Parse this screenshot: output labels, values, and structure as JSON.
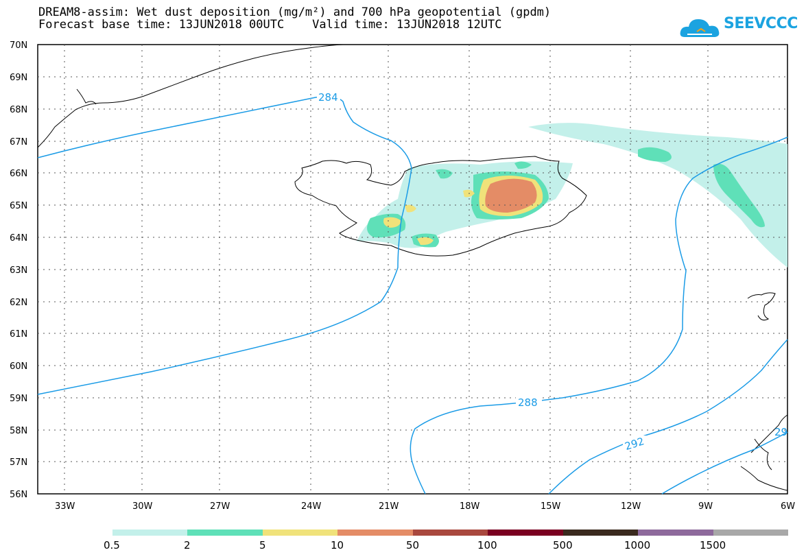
{
  "header": {
    "title_line1": "DREAM8-assim: Wet dust deposition (mg/m²) and 700 hPa geopotential (gpdm)",
    "title_line2": "Forecast base time: 13JUN2018 00UTC    Valid time: 13JUN2018 12UTC",
    "logo_text": "SEEVCCC"
  },
  "map": {
    "lat_labels": [
      "70N",
      "69N",
      "68N",
      "67N",
      "66N",
      "65N",
      "64N",
      "63N",
      "62N",
      "61N",
      "60N",
      "59N",
      "58N",
      "57N",
      "56N"
    ],
    "lon_labels": [
      "33W",
      "30W",
      "27W",
      "24W",
      "21W",
      "18W",
      "15W",
      "12W",
      "9W",
      "6W"
    ],
    "contour_labels": [
      "284",
      "288",
      "292",
      "29"
    ],
    "colors": {
      "contour": "#1a9be6",
      "coast": "#000000",
      "level_0_5": "#c3f0ea",
      "level_2": "#5fe0b8",
      "level_5": "#f0e27a",
      "level_10": "#e48c66"
    }
  },
  "legend": {
    "labels": [
      "0.5",
      "2",
      "5",
      "10",
      "50",
      "100",
      "500",
      "1000",
      "1500"
    ],
    "colors": [
      "#c3f0ea",
      "#5fe0b8",
      "#f0e27a",
      "#e48c66",
      "#a9483e",
      "#7a0020",
      "#3a2a1e",
      "#8e6a9c",
      "#a8a8a8"
    ]
  }
}
